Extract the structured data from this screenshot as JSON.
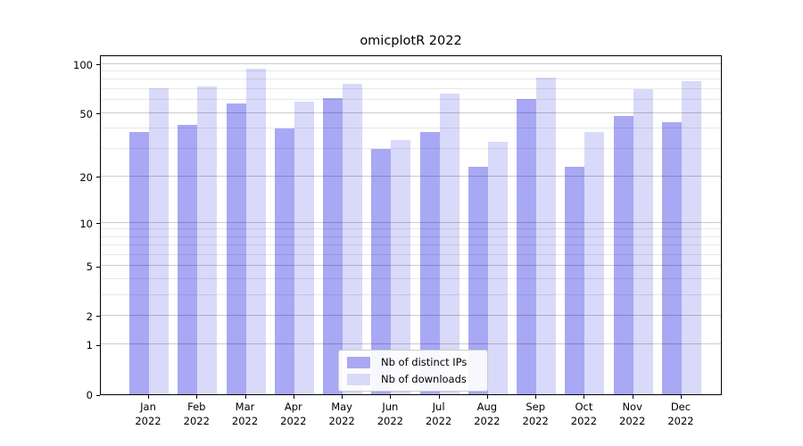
{
  "title": "omicplotR 2022",
  "chart_data": {
    "type": "bar",
    "title": "omicplotR 2022",
    "categories": [
      "Jan 2022",
      "Feb 2022",
      "Mar 2022",
      "Apr 2022",
      "May 2022",
      "Jun 2022",
      "Jul 2022",
      "Aug 2022",
      "Sep 2022",
      "Oct 2022",
      "Nov 2022",
      "Dec 2022"
    ],
    "series": [
      {
        "name": "Nb of distinct IPs",
        "color": "#a8a8f4",
        "values": [
          38,
          42,
          57,
          40,
          62,
          30,
          38,
          23,
          61,
          23,
          48,
          44
        ]
      },
      {
        "name": "Nb of downloads",
        "color": "#d9d9f9",
        "values": [
          71,
          73,
          94,
          59,
          76,
          34,
          66,
          33,
          83,
          38,
          70,
          78
        ]
      }
    ],
    "xlabel": "",
    "ylabel": "",
    "yscale": "log1p",
    "ylim": [
      0,
      115
    ],
    "y_major_ticks": [
      0,
      1,
      2,
      5,
      10,
      20,
      50,
      100
    ],
    "y_minor_gridlines": [
      3,
      4,
      6,
      7,
      8,
      9,
      30,
      40,
      60,
      70,
      80,
      90
    ],
    "grid": true,
    "grid_over_bars": true,
    "legend_position": "lower center"
  },
  "colors": {
    "background": "#ffffff",
    "spine": "#000000",
    "major_grid": "#cccccc",
    "minor_grid": "#e8e8e8",
    "text": "#000000"
  }
}
